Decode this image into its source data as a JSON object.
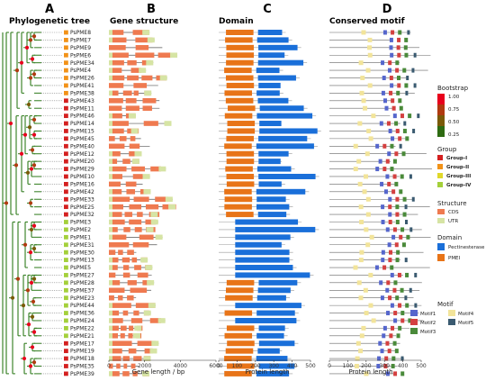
{
  "panels": {
    "a": {
      "letter": "A",
      "title": "Phylogenetic tree"
    },
    "b": {
      "letter": "B",
      "title": "Gene structure",
      "xlabel": "Gene length / bp",
      "ticks": [
        "0",
        "2000",
        "4000",
        "6000"
      ]
    },
    "c": {
      "letter": "C",
      "title": "Domain",
      "xlabel": "Protein length",
      "ticks": [
        "0",
        "100",
        "200",
        "300",
        "400",
        "500"
      ]
    },
    "d": {
      "letter": "D",
      "title": "Conserved motif",
      "xlabel": "Protein length",
      "ticks": [
        "0",
        "100",
        "200",
        "300",
        "400",
        "500"
      ]
    }
  },
  "genes": [
    {
      "name": "PsPME8",
      "group": "II"
    },
    {
      "name": "PsPME7",
      "group": "II"
    },
    {
      "name": "PsPME9",
      "group": "II"
    },
    {
      "name": "PsPME6",
      "group": "II"
    },
    {
      "name": "PsPME34",
      "group": "II"
    },
    {
      "name": "PsPME4",
      "group": "II"
    },
    {
      "name": "PsPME26",
      "group": "II"
    },
    {
      "name": "PsPME41",
      "group": "II"
    },
    {
      "name": "PsPME38",
      "group": "II"
    },
    {
      "name": "PsPME43",
      "group": "I"
    },
    {
      "name": "PsPME11",
      "group": "I"
    },
    {
      "name": "PsPME46",
      "group": "I"
    },
    {
      "name": "PsPME14",
      "group": "I"
    },
    {
      "name": "PsPME15",
      "group": "I"
    },
    {
      "name": "PsPME45",
      "group": "I"
    },
    {
      "name": "PsPME40",
      "group": "I"
    },
    {
      "name": "PsPME12",
      "group": "I"
    },
    {
      "name": "PsPME20",
      "group": "I"
    },
    {
      "name": "PsPME29",
      "group": "I"
    },
    {
      "name": "PsPME10",
      "group": "I"
    },
    {
      "name": "PsPME16",
      "group": "I"
    },
    {
      "name": "PsPME42",
      "group": "I"
    },
    {
      "name": "PsPME33",
      "group": "I"
    },
    {
      "name": "PsPME25",
      "group": "I"
    },
    {
      "name": "PsPME32",
      "group": "I"
    },
    {
      "name": "PsPME3",
      "group": "IV"
    },
    {
      "name": "PsPME2",
      "group": "IV"
    },
    {
      "name": "PsPME1",
      "group": "IV"
    },
    {
      "name": "PsPME31",
      "group": "IV"
    },
    {
      "name": "PsPME30",
      "group": "IV"
    },
    {
      "name": "PsPME13",
      "group": "IV"
    },
    {
      "name": "PsPME5",
      "group": "IV"
    },
    {
      "name": "PsPME27",
      "group": "IV"
    },
    {
      "name": "PsPME28",
      "group": "IV"
    },
    {
      "name": "PsPME37",
      "group": "IV"
    },
    {
      "name": "PsPME23",
      "group": "IV"
    },
    {
      "name": "PsPME44",
      "group": "IV"
    },
    {
      "name": "PsPME36",
      "group": "IV"
    },
    {
      "name": "PsPME24",
      "group": "IV"
    },
    {
      "name": "PsPME22",
      "group": "IV"
    },
    {
      "name": "PsPME21",
      "group": "IV"
    },
    {
      "name": "PsPME17",
      "group": "I"
    },
    {
      "name": "PsPME19",
      "group": "I"
    },
    {
      "name": "PsPME18",
      "group": "I"
    },
    {
      "name": "PsPME35",
      "group": "I"
    },
    {
      "name": "PsPME39",
      "group": "I"
    }
  ],
  "legend": {
    "bootstrap": {
      "title": "Bootstrap",
      "ticks": [
        "1.00",
        "0.75",
        "0.50",
        "0.25"
      ],
      "colors": [
        "#e8001c",
        "#b03a10",
        "#7a5a08",
        "#2e6b12"
      ]
    },
    "group": {
      "title": "Group",
      "items": [
        {
          "key": "I",
          "label": "Group-I",
          "color": "#d42020"
        },
        {
          "key": "II",
          "label": "Group-II",
          "color": "#f29218"
        },
        {
          "key": "III",
          "label": "Group-III",
          "color": "#e0d82a"
        },
        {
          "key": "IV",
          "label": "Group-IV",
          "color": "#a4d03a"
        }
      ]
    },
    "structure": {
      "title": "Structure",
      "items": [
        {
          "label": "CDS",
          "color": "#ef7a50"
        },
        {
          "label": "UTR",
          "color": "#d6e4a4"
        }
      ]
    },
    "domain": {
      "title": "Domain",
      "items": [
        {
          "label": "Pectinesterase",
          "color": "#1a6fd9"
        },
        {
          "label": "PMEI",
          "color": "#e87418"
        }
      ]
    },
    "motif": {
      "title": "Motif",
      "items": [
        {
          "label": "Motif1",
          "color": "#5566cc"
        },
        {
          "label": "Motif4",
          "color": "#f2e49a"
        },
        {
          "label": "Motif2",
          "color": "#d44040"
        },
        {
          "label": "Motif5",
          "color": "#3a5a70"
        },
        {
          "label": "Motif3",
          "color": "#4a8a3a"
        }
      ]
    }
  }
}
